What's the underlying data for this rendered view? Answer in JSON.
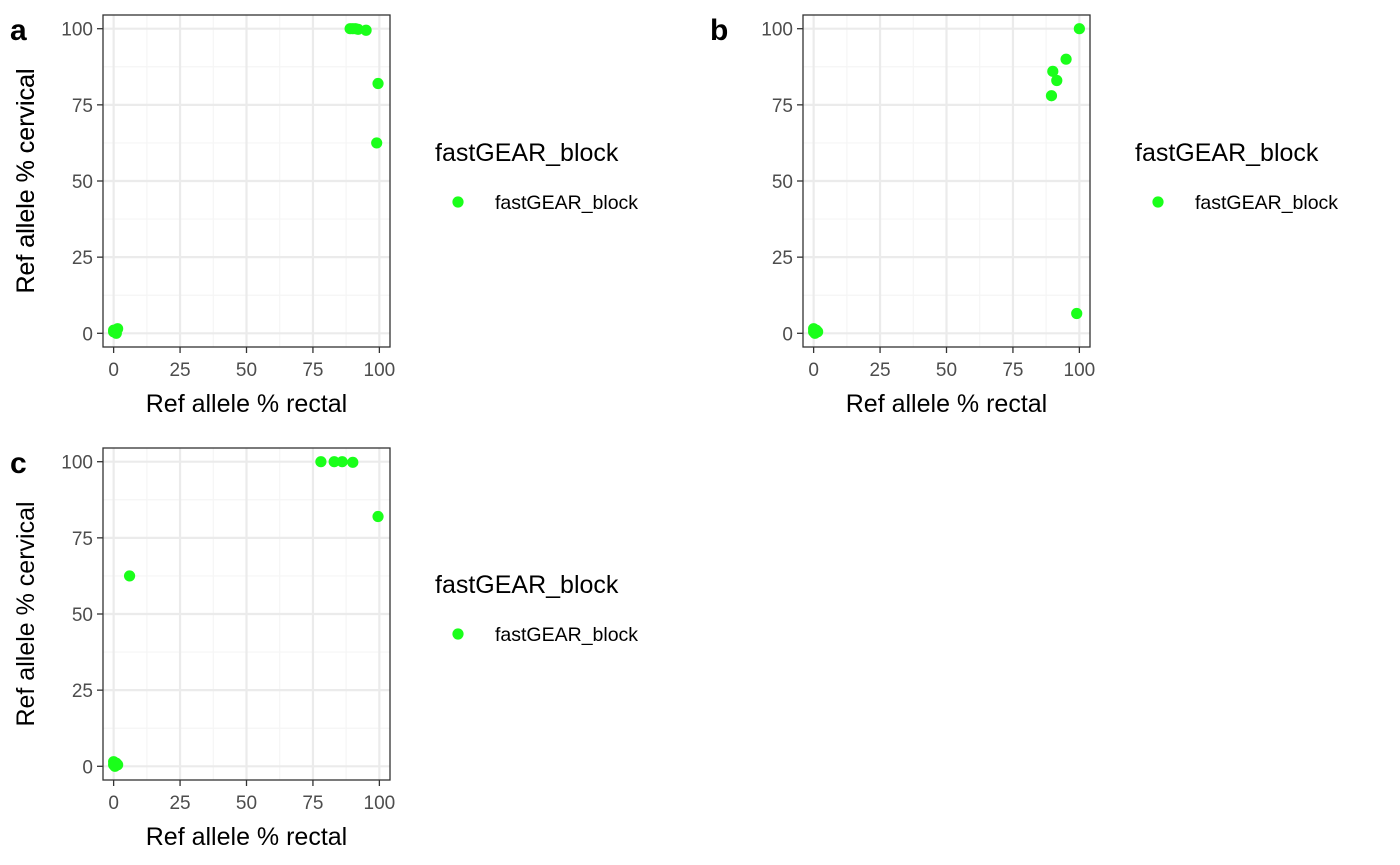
{
  "colors": {
    "point": "#1aff1a",
    "grid_major": "#ebebeb",
    "grid_minor": "#f5f5f5",
    "border": "#333333",
    "tick_text": "#4d4d4d"
  },
  "chart_data": [
    {
      "type": "scatter",
      "panel_label": "a",
      "xlabel": "Ref allele % rectal",
      "ylabel": "Ref allele % cervical",
      "xlim": [
        -4,
        104
      ],
      "ylim": [
        -4.5,
        104.5
      ],
      "xticks": [
        0,
        25,
        50,
        75,
        100
      ],
      "yticks": [
        0,
        25,
        50,
        75,
        100
      ],
      "grid": true,
      "legend": {
        "title": "fastGEAR_block",
        "position": "right",
        "entries": [
          "fastGEAR_block"
        ]
      },
      "series": [
        {
          "name": "fastGEAR_block",
          "points": [
            [
              0,
              0.5
            ],
            [
              0.5,
              1
            ],
            [
              1.5,
              1.5
            ],
            [
              1,
              0
            ],
            [
              0,
              1
            ],
            [
              89,
              100
            ],
            [
              90,
              100
            ],
            [
              91,
              100
            ],
            [
              92,
              99.8
            ],
            [
              95,
              99.5
            ],
            [
              99.5,
              82
            ],
            [
              99,
              62.5
            ]
          ]
        }
      ]
    },
    {
      "type": "scatter",
      "panel_label": "b",
      "xlabel": "Ref allele % rectal",
      "ylabel": "Ref allele % cervical",
      "xlim": [
        -4,
        104
      ],
      "ylim": [
        -4.5,
        104.5
      ],
      "xticks": [
        0,
        25,
        50,
        75,
        100
      ],
      "yticks": [
        0,
        25,
        50,
        75,
        100
      ],
      "grid": true,
      "legend": {
        "title": "fastGEAR_block",
        "position": "right",
        "entries": [
          "fastGEAR_block"
        ]
      },
      "series": [
        {
          "name": "fastGEAR_block",
          "points": [
            [
              0,
              1.5
            ],
            [
              0.5,
              0
            ],
            [
              1.5,
              0.5
            ],
            [
              0,
              0.5
            ],
            [
              1,
              1
            ],
            [
              90,
              86
            ],
            [
              91.5,
              83
            ],
            [
              89.5,
              78
            ],
            [
              95,
              90
            ],
            [
              100,
              100
            ],
            [
              99,
              6.5
            ]
          ]
        }
      ]
    },
    {
      "type": "scatter",
      "panel_label": "c",
      "xlabel": "Ref allele % rectal",
      "ylabel": "Ref allele % cervical",
      "xlim": [
        -4,
        104
      ],
      "ylim": [
        -4.5,
        104.5
      ],
      "xticks": [
        0,
        25,
        50,
        75,
        100
      ],
      "yticks": [
        0,
        25,
        50,
        75,
        100
      ],
      "grid": true,
      "legend": {
        "title": "fastGEAR_block",
        "position": "right",
        "entries": [
          "fastGEAR_block"
        ]
      },
      "series": [
        {
          "name": "fastGEAR_block",
          "points": [
            [
              0,
              1.5
            ],
            [
              0.5,
              0
            ],
            [
              1.5,
              0.5
            ],
            [
              1,
              1
            ],
            [
              0,
              0.5
            ],
            [
              78,
              100
            ],
            [
              83,
              100
            ],
            [
              86,
              100
            ],
            [
              90,
              99.8
            ],
            [
              99.5,
              82
            ],
            [
              6,
              62.5
            ]
          ]
        }
      ]
    }
  ]
}
